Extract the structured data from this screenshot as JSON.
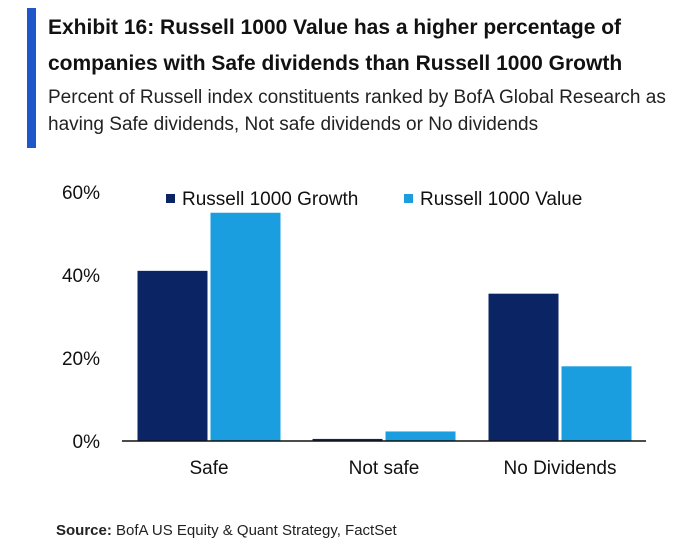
{
  "header": {
    "title": "Exhibit 16: Russell 1000 Value has a higher percentage of companies with Safe dividends than Russell 1000 Growth",
    "subtitle": "Percent of Russell index constituents ranked by BofA Global Research as having Safe dividends, Not safe dividends or No dividends"
  },
  "source": {
    "label": "Source:",
    "text": "BofA US Equity & Quant Strategy, FactSet"
  },
  "colors": {
    "accent": "#1f56c9",
    "growth": "#0b2463",
    "value": "#1a9ee0"
  },
  "chart_data": {
    "type": "bar",
    "categories": [
      "Safe",
      "Not safe",
      "No Dividends"
    ],
    "series": [
      {
        "name": "Russell 1000 Growth",
        "values": [
          41,
          0.5,
          35.5
        ]
      },
      {
        "name": "Russell 1000 Value",
        "values": [
          55,
          2.3,
          18
        ]
      }
    ],
    "ylim": [
      0,
      60
    ],
    "yticks": [
      0,
      20,
      40,
      60
    ],
    "ytick_labels": [
      "0%",
      "20%",
      "40%",
      "60%"
    ],
    "xlabel": "",
    "ylabel": "",
    "grid": false,
    "legend_position": "top"
  }
}
